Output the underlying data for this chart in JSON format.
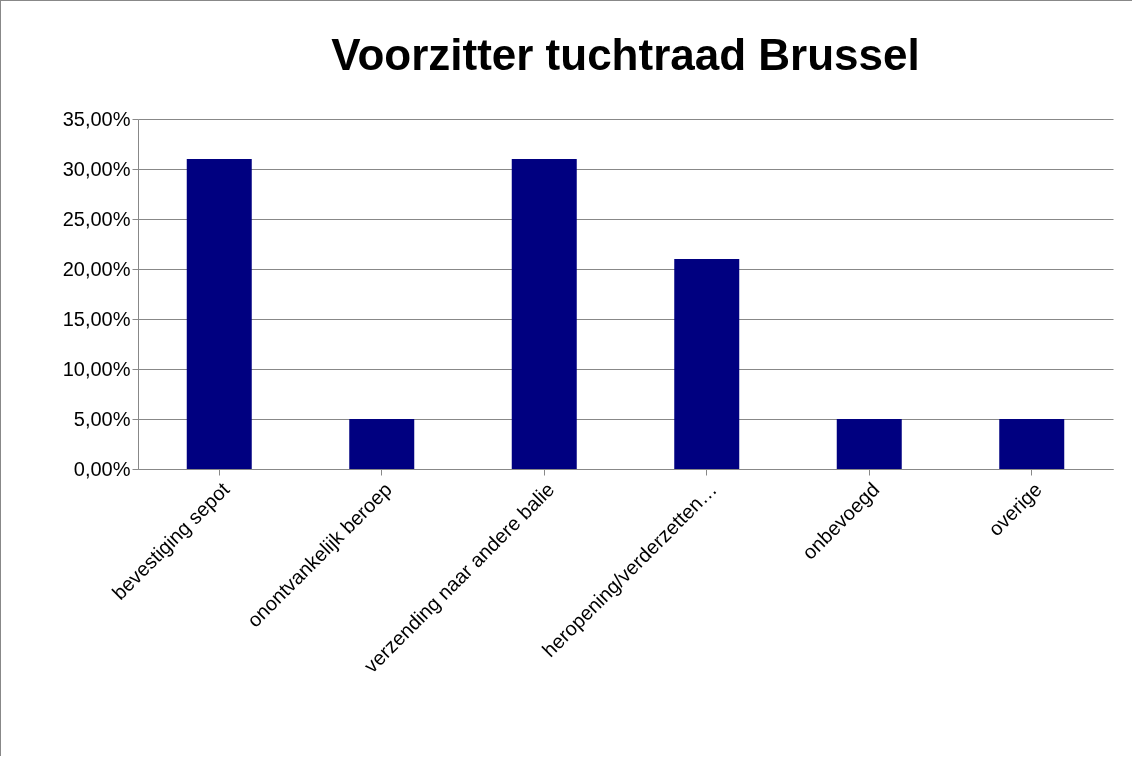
{
  "chart_data": {
    "type": "bar",
    "title": "Voorzitter tuchtraad Brussel",
    "categories": [
      "bevestiging sepot",
      "onontvankelijk beroep",
      "verzending naar andere balie",
      "heropening/verderzetten…",
      "onbevoegd",
      "overige"
    ],
    "values": [
      31,
      5,
      31,
      21,
      5,
      5
    ],
    "color": "#000080",
    "ylim": [
      0,
      35
    ],
    "yticks": [
      {
        "value": 0,
        "label": "0,00%"
      },
      {
        "value": 5,
        "label": "5,00%"
      },
      {
        "value": 10,
        "label": "10,00%"
      },
      {
        "value": 15,
        "label": "15,00%"
      },
      {
        "value": 20,
        "label": "20,00%"
      },
      {
        "value": 25,
        "label": "25,00%"
      },
      {
        "value": 30,
        "label": "30,00%"
      },
      {
        "value": 35,
        "label": "35,00%"
      }
    ],
    "grid": "y"
  }
}
